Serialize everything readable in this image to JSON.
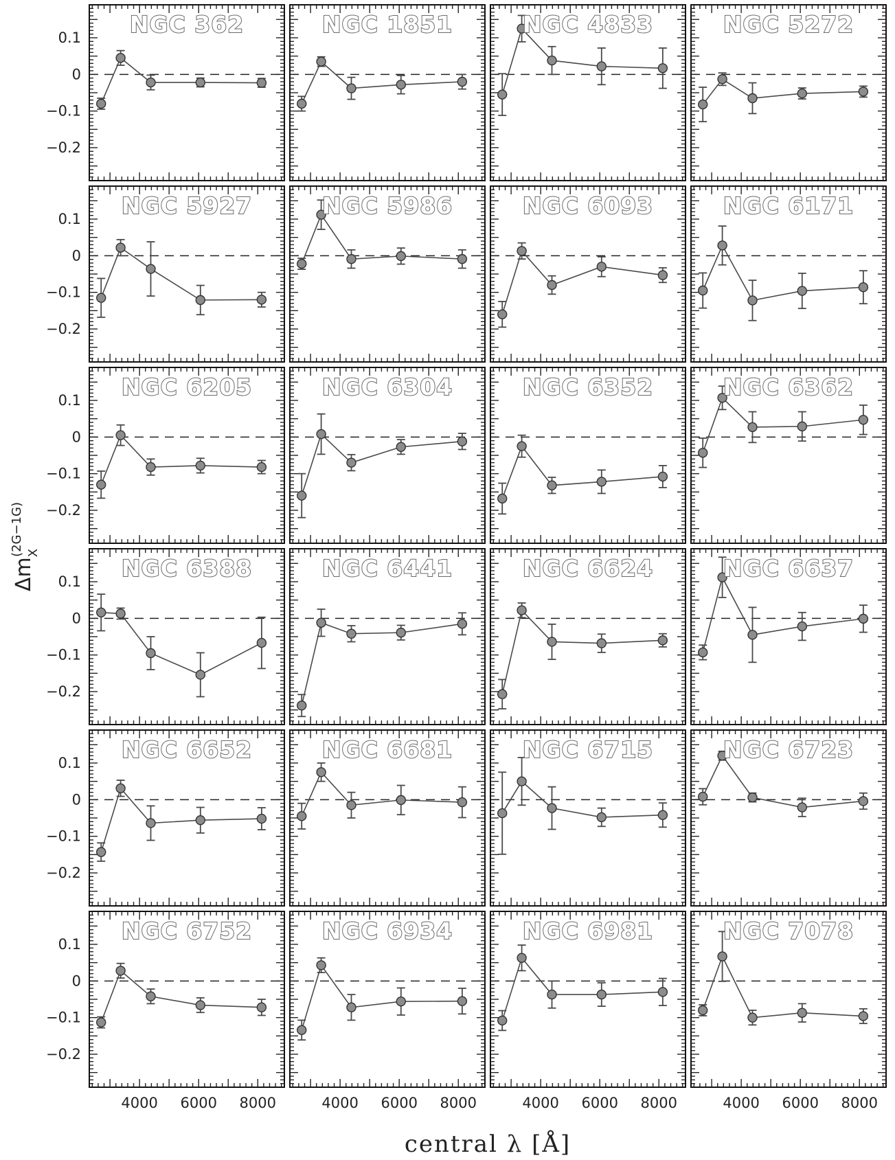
{
  "chart_data": {
    "type": "scatter",
    "xlabel": "central λ [Å]",
    "ylabel": {
      "main": "Δm",
      "sub": "X",
      "sup": "(2G−1G)"
    },
    "xlim": [
      2300,
      8900
    ],
    "ylim": [
      0.19,
      -0.29
    ],
    "y_inverted": true,
    "xticks": [
      4000,
      6000,
      8000
    ],
    "yticks": [
      -0.2,
      -0.1,
      0,
      0.1
    ],
    "ytick_labels": [
      "−0.2",
      "−0.1",
      "0",
      "0.1"
    ],
    "reference_line": 0,
    "x": [
      2700,
      3360,
      4380,
      6060,
      8130
    ],
    "panels": [
      {
        "name": "NGC 362",
        "y": [
          -0.08,
          0.045,
          -0.022,
          -0.022,
          -0.023
        ],
        "err": [
          0.015,
          0.02,
          0.02,
          0.012,
          0.012
        ]
      },
      {
        "name": "NGC 1851",
        "y": [
          -0.08,
          0.035,
          -0.038,
          -0.028,
          -0.02
        ],
        "err": [
          0.02,
          0.013,
          0.03,
          0.025,
          0.02
        ]
      },
      {
        "name": "NGC 4833",
        "y": [
          -0.055,
          0.125,
          0.038,
          0.022,
          0.017
        ],
        "err": [
          0.057,
          0.036,
          0.038,
          0.05,
          0.055
        ]
      },
      {
        "name": "NGC 5272",
        "y": [
          -0.082,
          -0.013,
          -0.065,
          -0.052,
          -0.047
        ],
        "err": [
          0.047,
          0.017,
          0.042,
          0.015,
          0.015
        ]
      },
      {
        "name": "NGC 5927",
        "y": [
          -0.115,
          0.022,
          -0.036,
          -0.121,
          -0.12
        ],
        "err": [
          0.053,
          0.022,
          0.074,
          0.04,
          0.02
        ]
      },
      {
        "name": "NGC 5986",
        "y": [
          -0.022,
          0.112,
          -0.009,
          -0.001,
          -0.009
        ],
        "err": [
          0.015,
          0.04,
          0.025,
          0.022,
          0.025
        ]
      },
      {
        "name": "NGC 6093",
        "y": [
          -0.16,
          0.013,
          -0.08,
          -0.03,
          -0.053
        ],
        "err": [
          0.035,
          0.022,
          0.025,
          0.027,
          0.02
        ]
      },
      {
        "name": "NGC 6171",
        "y": [
          -0.095,
          0.028,
          -0.122,
          -0.096,
          -0.086
        ],
        "err": [
          0.048,
          0.053,
          0.055,
          0.048,
          0.045
        ]
      },
      {
        "name": "NGC 6205",
        "y": [
          -0.13,
          0.005,
          -0.082,
          -0.078,
          -0.082
        ],
        "err": [
          0.037,
          0.028,
          0.022,
          0.02,
          0.018
        ]
      },
      {
        "name": "NGC 6304",
        "y": [
          -0.16,
          0.008,
          -0.07,
          -0.027,
          -0.012
        ],
        "err": [
          0.06,
          0.055,
          0.022,
          0.02,
          0.022
        ]
      },
      {
        "name": "NGC 6352",
        "y": [
          -0.168,
          -0.025,
          -0.132,
          -0.122,
          -0.108
        ],
        "err": [
          0.042,
          0.03,
          0.022,
          0.032,
          0.03
        ]
      },
      {
        "name": "NGC 6362",
        "y": [
          -0.043,
          0.107,
          0.027,
          0.029,
          0.047
        ],
        "err": [
          0.04,
          0.032,
          0.042,
          0.04,
          0.04
        ]
      },
      {
        "name": "NGC 6388",
        "y": [
          0.016,
          0.013,
          -0.095,
          -0.154,
          -0.067
        ],
        "err": [
          0.05,
          0.015,
          0.045,
          0.06,
          0.07
        ]
      },
      {
        "name": "NGC 6441",
        "y": [
          -0.238,
          -0.012,
          -0.042,
          -0.039,
          -0.015
        ],
        "err": [
          0.03,
          0.037,
          0.022,
          0.02,
          0.03
        ]
      },
      {
        "name": "NGC 6624",
        "y": [
          -0.207,
          0.022,
          -0.064,
          -0.068,
          -0.06
        ],
        "err": [
          0.04,
          0.02,
          0.048,
          0.025,
          0.018
        ]
      },
      {
        "name": "NGC 6637",
        "y": [
          -0.093,
          0.112,
          -0.045,
          -0.022,
          -0.001
        ],
        "err": [
          0.02,
          0.055,
          0.075,
          0.038,
          0.037
        ]
      },
      {
        "name": "NGC 6652",
        "y": [
          -0.143,
          0.031,
          -0.064,
          -0.056,
          -0.052
        ],
        "err": [
          0.025,
          0.022,
          0.047,
          0.035,
          0.03
        ]
      },
      {
        "name": "NGC 6681",
        "y": [
          -0.045,
          0.075,
          -0.015,
          -0.001,
          -0.007
        ],
        "err": [
          0.035,
          0.025,
          0.035,
          0.04,
          0.042
        ]
      },
      {
        "name": "NGC 6715",
        "y": [
          -0.037,
          0.05,
          -0.023,
          -0.048,
          -0.042
        ],
        "err": [
          0.112,
          0.065,
          0.058,
          0.025,
          0.033
        ]
      },
      {
        "name": "NGC 6723",
        "y": [
          0.008,
          0.12,
          0.006,
          -0.021,
          -0.004
        ],
        "err": [
          0.022,
          0.012,
          0.012,
          0.025,
          0.022
        ]
      },
      {
        "name": "NGC 6752",
        "y": [
          -0.113,
          0.028,
          -0.042,
          -0.066,
          -0.072
        ],
        "err": [
          0.015,
          0.02,
          0.02,
          0.02,
          0.022
        ]
      },
      {
        "name": "NGC 6934",
        "y": [
          -0.134,
          0.043,
          -0.072,
          -0.056,
          -0.055
        ],
        "err": [
          0.027,
          0.02,
          0.035,
          0.037,
          0.035
        ]
      },
      {
        "name": "NGC 6981",
        "y": [
          -0.108,
          0.063,
          -0.037,
          -0.037,
          -0.03
        ],
        "err": [
          0.027,
          0.035,
          0.037,
          0.032,
          0.037
        ]
      },
      {
        "name": "NGC 7078",
        "y": [
          -0.08,
          0.067,
          -0.1,
          -0.087,
          -0.096
        ],
        "err": [
          0.015,
          0.068,
          0.02,
          0.025,
          0.02
        ]
      }
    ]
  }
}
